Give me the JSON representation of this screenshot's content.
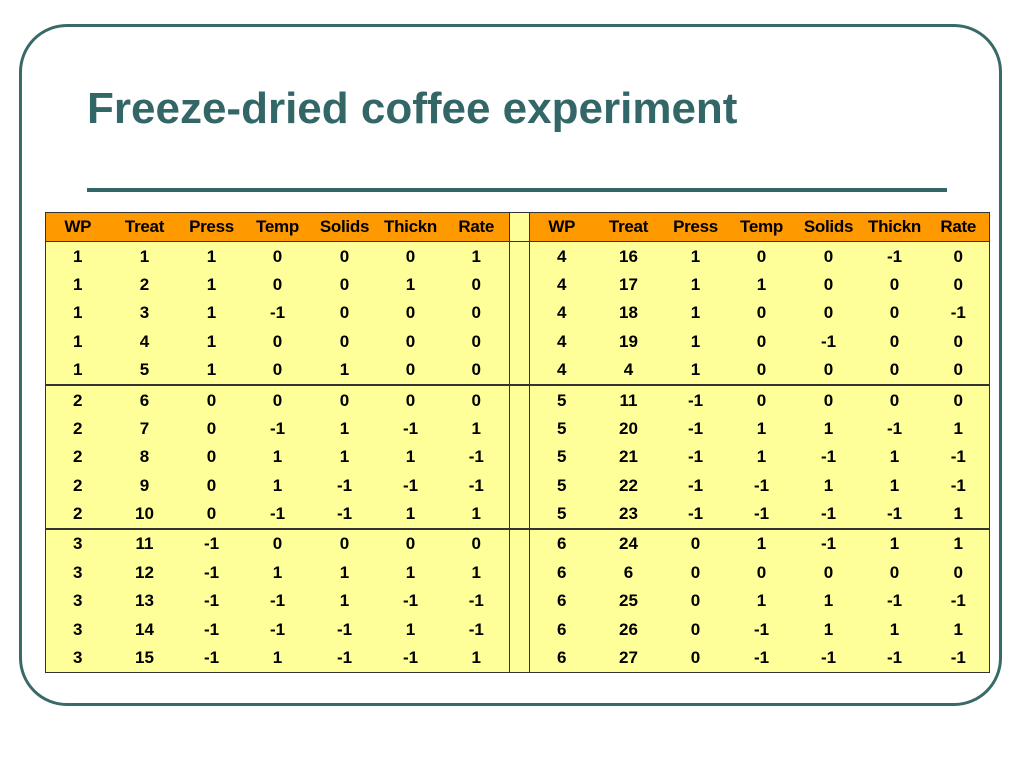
{
  "title": "Freeze-dried coffee experiment",
  "columns": [
    "WP",
    "Treat",
    "Press",
    "Temp",
    "Solids",
    "Thickn",
    "Rate"
  ],
  "left_rows": [
    [
      "1",
      "1",
      "1",
      "0",
      "0",
      "0",
      "1"
    ],
    [
      "1",
      "2",
      "1",
      "0",
      "0",
      "1",
      "0"
    ],
    [
      "1",
      "3",
      "1",
      "-1",
      "0",
      "0",
      "0"
    ],
    [
      "1",
      "4",
      "1",
      "0",
      "0",
      "0",
      "0"
    ],
    [
      "1",
      "5",
      "1",
      "0",
      "1",
      "0",
      "0"
    ],
    [
      "2",
      "6",
      "0",
      "0",
      "0",
      "0",
      "0"
    ],
    [
      "2",
      "7",
      "0",
      "-1",
      "1",
      "-1",
      "1"
    ],
    [
      "2",
      "8",
      "0",
      "1",
      "1",
      "1",
      "-1"
    ],
    [
      "2",
      "9",
      "0",
      "1",
      "-1",
      "-1",
      "-1"
    ],
    [
      "2",
      "10",
      "0",
      "-1",
      "-1",
      "1",
      "1"
    ],
    [
      "3",
      "11",
      "-1",
      "0",
      "0",
      "0",
      "0"
    ],
    [
      "3",
      "12",
      "-1",
      "1",
      "1",
      "1",
      "1"
    ],
    [
      "3",
      "13",
      "-1",
      "-1",
      "1",
      "-1",
      "-1"
    ],
    [
      "3",
      "14",
      "-1",
      "-1",
      "-1",
      "1",
      "-1"
    ],
    [
      "3",
      "15",
      "-1",
      "1",
      "-1",
      "-1",
      "1"
    ]
  ],
  "right_rows": [
    [
      "4",
      "16",
      "1",
      "0",
      "0",
      "-1",
      "0"
    ],
    [
      "4",
      "17",
      "1",
      "1",
      "0",
      "0",
      "0"
    ],
    [
      "4",
      "18",
      "1",
      "0",
      "0",
      "0",
      "-1"
    ],
    [
      "4",
      "19",
      "1",
      "0",
      "-1",
      "0",
      "0"
    ],
    [
      "4",
      "4",
      "1",
      "0",
      "0",
      "0",
      "0"
    ],
    [
      "5",
      "11",
      "-1",
      "0",
      "0",
      "0",
      "0"
    ],
    [
      "5",
      "20",
      "-1",
      "1",
      "1",
      "-1",
      "1"
    ],
    [
      "5",
      "21",
      "-1",
      "1",
      "-1",
      "1",
      "-1"
    ],
    [
      "5",
      "22",
      "-1",
      "-1",
      "1",
      "1",
      "-1"
    ],
    [
      "5",
      "23",
      "-1",
      "-1",
      "-1",
      "-1",
      "1"
    ],
    [
      "6",
      "24",
      "0",
      "1",
      "-1",
      "1",
      "1"
    ],
    [
      "6",
      "6",
      "0",
      "0",
      "0",
      "0",
      "0"
    ],
    [
      "6",
      "25",
      "0",
      "1",
      "1",
      "-1",
      "-1"
    ],
    [
      "6",
      "26",
      "0",
      "-1",
      "1",
      "1",
      "1"
    ],
    [
      "6",
      "27",
      "0",
      "-1",
      "-1",
      "-1",
      "-1"
    ]
  ]
}
